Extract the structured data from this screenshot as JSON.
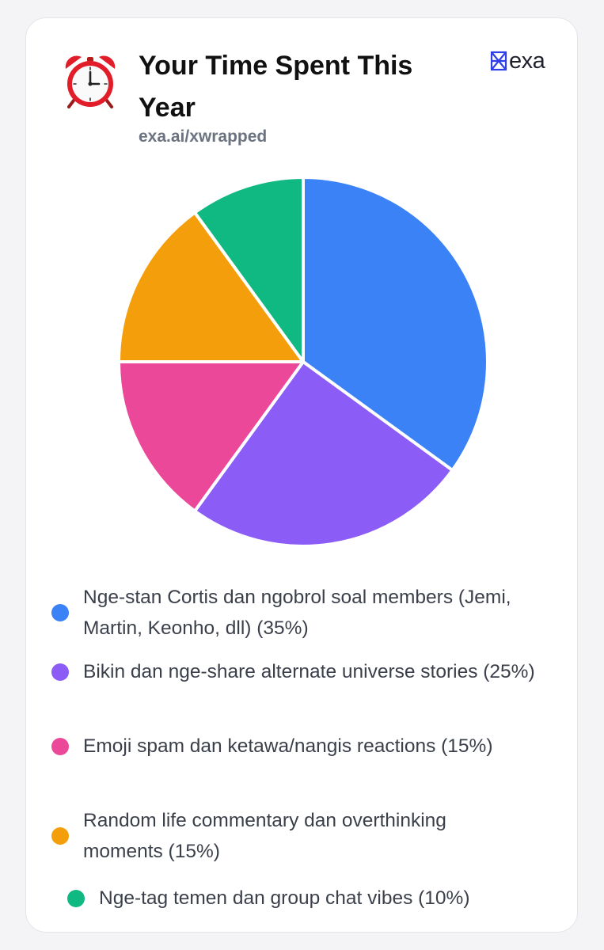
{
  "header": {
    "icon": "alarm-clock-icon",
    "title": "Your Time Spent This Year",
    "subtitle": "exa.ai/xwrapped",
    "logo_text": "exa"
  },
  "chart_data": {
    "type": "pie",
    "categories": [
      "Nge-stan Cortis dan ngobrol soal members (Jemi, Martin, Keonho, dll) (35%)",
      "Bikin dan nge-share alternate universe stories (25%)",
      "Emoji spam dan ketawa/nangis reactions (15%)",
      "Random life commentary dan overthinking moments (15%)",
      "Nge-tag temen dan group chat vibes (10%)"
    ],
    "values": [
      35,
      25,
      15,
      15,
      10
    ],
    "colors": [
      "#3b82f6",
      "#8b5cf6",
      "#ec4899",
      "#f59e0b",
      "#10b981"
    ],
    "start": "12 o'clock, clockwise",
    "legend_position": "bottom"
  }
}
